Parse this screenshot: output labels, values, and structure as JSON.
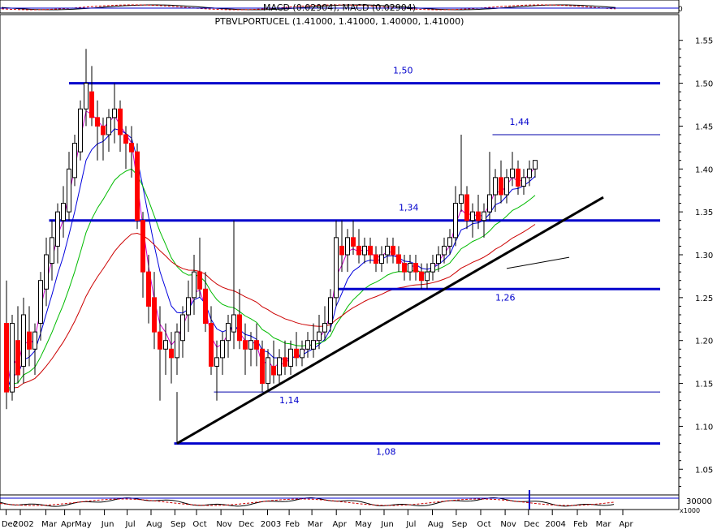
{
  "macd_header": "MACD (0.02904), MACD (0.02904)",
  "macd_panel_tick": "0",
  "price_title": "PTBVLPORTUCEL (1.41000, 1.41000, 1.40000, 1.41000)",
  "volume_ticks": [
    "30000",
    "x1000"
  ],
  "chart_data": {
    "type": "candlestick",
    "title": "PTBVLPORTUCEL (1.41000, 1.41000, 1.40000, 1.41000)",
    "y_axis": {
      "range": [
        1.02,
        1.58
      ],
      "ticks": [
        "1.05",
        "1.10",
        "1.15",
        "1.20",
        "1.25",
        "1.30",
        "1.35",
        "1.40",
        "1.45",
        "1.50",
        "1.55"
      ],
      "tick_values": [
        1.05,
        1.1,
        1.15,
        1.2,
        1.25,
        1.3,
        1.35,
        1.4,
        1.45,
        1.5,
        1.55
      ]
    },
    "x_axis": {
      "labels": [
        "Dec",
        "2002",
        "Mar",
        "Apr",
        "May",
        "Jun",
        "Jul",
        "Aug",
        "Sep",
        "Oct",
        "Nov",
        "Dec",
        "2003",
        "Feb",
        "Mar",
        "Apr",
        "May",
        "Jun",
        "Jul",
        "Aug",
        "Sep",
        "Oct",
        "Nov",
        "Dec",
        "2004",
        "Feb",
        "Mar",
        "Apr"
      ],
      "label_index": [
        0.5,
        3,
        7.5,
        10.8,
        13.5,
        17.8,
        21.8,
        26,
        30.2,
        34,
        38.3,
        42.2,
        46.5,
        50.3,
        54.3,
        58.6,
        62.8,
        67,
        71.2,
        75.5,
        79.7,
        84,
        88.3,
        92.4,
        96.6,
        101,
        105,
        109
      ]
    },
    "levels": [
      {
        "label": "1,50",
        "value": 1.5,
        "weight": "heavy",
        "from": 11,
        "to": 115,
        "label_at": 68
      },
      {
        "label": "1,44",
        "value": 1.44,
        "weight": "thin",
        "from": 85.5,
        "to": 115,
        "label_at": 88.5
      },
      {
        "label": "1,34",
        "value": 1.34,
        "weight": "heavy",
        "from": 7.5,
        "to": 115,
        "label_at": 69
      },
      {
        "label": "1,26",
        "value": 1.26,
        "weight": "heavy",
        "from": 58.2,
        "to": 115,
        "label_at": 86
      },
      {
        "label": "1,14",
        "value": 1.14,
        "weight": "thin",
        "from": 36.5,
        "to": 115,
        "label_at": 48
      },
      {
        "label": "1,08",
        "value": 1.08,
        "weight": "heavy",
        "from": 29.5,
        "to": 115,
        "label_at": 65
      }
    ],
    "trendlines": [
      {
        "from": [
          30,
          1.08
        ],
        "to": [
          105,
          1.367
        ],
        "width": 3
      },
      {
        "from": [
          88,
          1.284
        ],
        "to": [
          99,
          1.297
        ],
        "width": 1
      }
    ],
    "candles": [
      [
        1.22,
        1.27,
        1.12,
        1.14
      ],
      [
        1.14,
        1.23,
        1.13,
        1.22
      ],
      [
        1.2,
        1.24,
        1.15,
        1.16
      ],
      [
        1.17,
        1.25,
        1.15,
        1.23
      ],
      [
        1.21,
        1.24,
        1.17,
        1.19
      ],
      [
        1.19,
        1.22,
        1.16,
        1.21
      ],
      [
        1.22,
        1.28,
        1.2,
        1.27
      ],
      [
        1.26,
        1.32,
        1.24,
        1.3
      ],
      [
        1.29,
        1.34,
        1.27,
        1.32
      ],
      [
        1.31,
        1.36,
        1.29,
        1.35
      ],
      [
        1.34,
        1.38,
        1.32,
        1.36
      ],
      [
        1.35,
        1.42,
        1.34,
        1.4
      ],
      [
        1.39,
        1.44,
        1.38,
        1.43
      ],
      [
        1.42,
        1.48,
        1.41,
        1.47
      ],
      [
        1.47,
        1.54,
        1.45,
        1.5
      ],
      [
        1.49,
        1.52,
        1.45,
        1.46
      ],
      [
        1.46,
        1.48,
        1.41,
        1.45
      ],
      [
        1.45,
        1.46,
        1.41,
        1.44
      ],
      [
        1.44,
        1.47,
        1.42,
        1.46
      ],
      [
        1.46,
        1.5,
        1.43,
        1.47
      ],
      [
        1.47,
        1.48,
        1.42,
        1.44
      ],
      [
        1.44,
        1.45,
        1.4,
        1.43
      ],
      [
        1.43,
        1.45,
        1.39,
        1.42
      ],
      [
        1.42,
        1.43,
        1.33,
        1.34
      ],
      [
        1.34,
        1.35,
        1.25,
        1.28
      ],
      [
        1.28,
        1.3,
        1.22,
        1.24
      ],
      [
        1.25,
        1.28,
        1.19,
        1.21
      ],
      [
        1.21,
        1.24,
        1.13,
        1.19
      ],
      [
        1.19,
        1.22,
        1.16,
        1.2
      ],
      [
        1.19,
        1.21,
        1.15,
        1.18
      ],
      [
        1.18,
        1.22,
        1.16,
        1.21
      ],
      [
        1.2,
        1.24,
        1.18,
        1.23
      ],
      [
        1.23,
        1.27,
        1.21,
        1.25
      ],
      [
        1.25,
        1.3,
        1.23,
        1.28
      ],
      [
        1.28,
        1.32,
        1.25,
        1.26
      ],
      [
        1.26,
        1.28,
        1.21,
        1.22
      ],
      [
        1.22,
        1.24,
        1.16,
        1.17
      ],
      [
        1.17,
        1.2,
        1.13,
        1.18
      ],
      [
        1.18,
        1.21,
        1.16,
        1.2
      ],
      [
        1.2,
        1.23,
        1.18,
        1.22
      ],
      [
        1.21,
        1.34,
        1.19,
        1.23
      ],
      [
        1.23,
        1.26,
        1.19,
        1.2
      ],
      [
        1.2,
        1.22,
        1.16,
        1.19
      ],
      [
        1.19,
        1.21,
        1.17,
        1.2
      ],
      [
        1.2,
        1.22,
        1.17,
        1.19
      ],
      [
        1.19,
        1.2,
        1.14,
        1.15
      ],
      [
        1.15,
        1.19,
        1.14,
        1.18
      ],
      [
        1.17,
        1.2,
        1.15,
        1.16
      ],
      [
        1.16,
        1.19,
        1.15,
        1.18
      ],
      [
        1.18,
        1.2,
        1.16,
        1.17
      ],
      [
        1.17,
        1.2,
        1.16,
        1.19
      ],
      [
        1.19,
        1.21,
        1.17,
        1.18
      ],
      [
        1.18,
        1.2,
        1.17,
        1.19
      ],
      [
        1.19,
        1.21,
        1.18,
        1.2
      ],
      [
        1.19,
        1.22,
        1.18,
        1.2
      ],
      [
        1.2,
        1.23,
        1.19,
        1.21
      ],
      [
        1.21,
        1.24,
        1.2,
        1.22
      ],
      [
        1.22,
        1.26,
        1.21,
        1.25
      ],
      [
        1.25,
        1.34,
        1.24,
        1.32
      ],
      [
        1.31,
        1.34,
        1.28,
        1.3
      ],
      [
        1.3,
        1.33,
        1.28,
        1.32
      ],
      [
        1.32,
        1.34,
        1.3,
        1.31
      ],
      [
        1.31,
        1.33,
        1.29,
        1.3
      ],
      [
        1.3,
        1.32,
        1.29,
        1.31
      ],
      [
        1.31,
        1.32,
        1.29,
        1.3
      ],
      [
        1.3,
        1.31,
        1.28,
        1.29
      ],
      [
        1.29,
        1.31,
        1.28,
        1.3
      ],
      [
        1.3,
        1.32,
        1.29,
        1.31
      ],
      [
        1.31,
        1.32,
        1.29,
        1.3
      ],
      [
        1.3,
        1.31,
        1.28,
        1.29
      ],
      [
        1.29,
        1.3,
        1.27,
        1.28
      ],
      [
        1.28,
        1.3,
        1.27,
        1.29
      ],
      [
        1.29,
        1.3,
        1.27,
        1.28
      ],
      [
        1.28,
        1.29,
        1.26,
        1.27
      ],
      [
        1.27,
        1.29,
        1.26,
        1.28
      ],
      [
        1.28,
        1.3,
        1.27,
        1.29
      ],
      [
        1.29,
        1.31,
        1.28,
        1.3
      ],
      [
        1.3,
        1.32,
        1.29,
        1.31
      ],
      [
        1.31,
        1.33,
        1.3,
        1.32
      ],
      [
        1.32,
        1.38,
        1.31,
        1.36
      ],
      [
        1.36,
        1.44,
        1.35,
        1.37
      ],
      [
        1.37,
        1.38,
        1.33,
        1.34
      ],
      [
        1.34,
        1.36,
        1.32,
        1.35
      ],
      [
        1.35,
        1.37,
        1.33,
        1.34
      ],
      [
        1.34,
        1.36,
        1.32,
        1.35
      ],
      [
        1.35,
        1.42,
        1.34,
        1.37
      ],
      [
        1.37,
        1.4,
        1.35,
        1.39
      ],
      [
        1.39,
        1.41,
        1.36,
        1.37
      ],
      [
        1.37,
        1.4,
        1.36,
        1.39
      ],
      [
        1.39,
        1.42,
        1.38,
        1.4
      ],
      [
        1.4,
        1.41,
        1.37,
        1.38
      ],
      [
        1.38,
        1.4,
        1.37,
        1.39
      ],
      [
        1.39,
        1.41,
        1.38,
        1.4
      ],
      [
        1.4,
        1.41,
        1.39,
        1.41
      ]
    ]
  }
}
